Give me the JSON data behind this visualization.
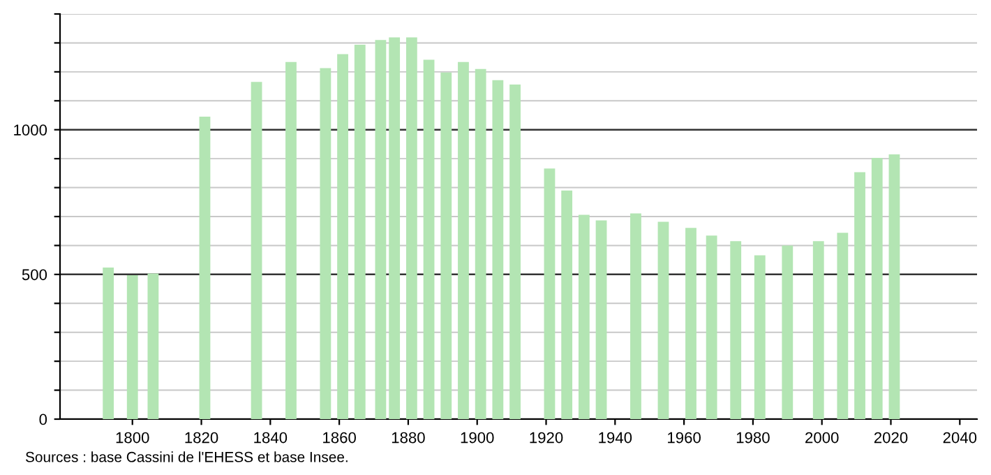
{
  "chart_data": {
    "type": "bar",
    "x": [
      1793,
      1800,
      1806,
      1821,
      1836,
      1846,
      1856,
      1861,
      1866,
      1872,
      1876,
      1881,
      1886,
      1891,
      1896,
      1901,
      1906,
      1911,
      1921,
      1926,
      1931,
      1936,
      1946,
      1954,
      1962,
      1968,
      1975,
      1982,
      1990,
      1999,
      2006,
      2011,
      2016,
      2021
    ],
    "values": [
      524,
      497,
      503,
      1045,
      1165,
      1234,
      1213,
      1261,
      1294,
      1310,
      1319,
      1319,
      1242,
      1198,
      1234,
      1210,
      1171,
      1156,
      866,
      790,
      706,
      687,
      711,
      682,
      661,
      634,
      615,
      566,
      600,
      615,
      644,
      853,
      903,
      915
    ],
    "color": "#b3e5b3",
    "xlim": [
      1779,
      2045
    ],
    "xticks": [
      1800,
      1820,
      1840,
      1860,
      1880,
      1900,
      1920,
      1940,
      1960,
      1980,
      2000,
      2020,
      2040
    ],
    "ylim": [
      0,
      1400
    ],
    "yticks": [
      0,
      {
        "value": 100,
        "label": null
      },
      {
        "value": 200,
        "label": null
      },
      {
        "value": 300,
        "label": null
      },
      {
        "value": 400,
        "label": null
      },
      500,
      {
        "value": 600,
        "label": null
      },
      {
        "value": 700,
        "label": null
      },
      {
        "value": 800,
        "label": null
      },
      {
        "value": 900,
        "label": null
      },
      1000,
      {
        "value": 1100,
        "label": null
      },
      {
        "value": 1200,
        "label": null
      },
      {
        "value": 1300,
        "label": null
      },
      {
        "value": 1400,
        "label": null
      }
    ],
    "grid": "y",
    "legend": false,
    "annotations": [
      "Sources : base Cassini de l'EHESS et base Insee."
    ]
  }
}
